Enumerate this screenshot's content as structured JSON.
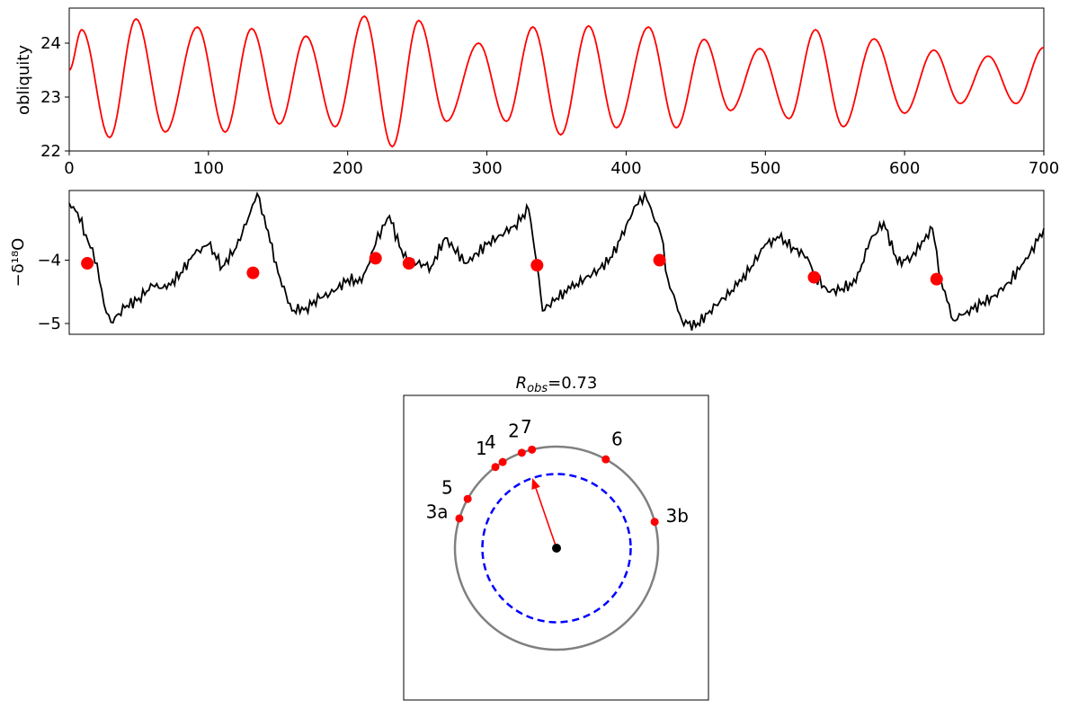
{
  "chart_data": [
    {
      "type": "line",
      "title": "",
      "xlabel": "",
      "ylabel": "obliquity",
      "xlim": [
        0,
        700
      ],
      "ylim": [
        22,
        24.65
      ],
      "xticks": [
        0,
        100,
        200,
        300,
        400,
        500,
        600,
        700
      ],
      "yticks": [
        22,
        23,
        24
      ],
      "grid": false,
      "series": [
        {
          "color": "#ff0000",
          "x": [
            0,
            9,
            29,
            48,
            69,
            92,
            112,
            131,
            151,
            170,
            191,
            212,
            232,
            251,
            271,
            294,
            314,
            333,
            353,
            373,
            393,
            416,
            436,
            456,
            475,
            496,
            517,
            536,
            556,
            578,
            600,
            621,
            640,
            660,
            680,
            700
          ],
          "y": [
            23.5,
            24.25,
            22.25,
            24.45,
            22.35,
            24.3,
            22.35,
            24.27,
            22.5,
            24.13,
            22.45,
            24.5,
            22.08,
            24.42,
            22.55,
            24.0,
            22.55,
            24.3,
            22.3,
            24.32,
            22.43,
            24.3,
            22.43,
            24.07,
            22.75,
            23.9,
            22.6,
            24.25,
            22.45,
            24.08,
            22.7,
            23.87,
            22.88,
            23.76,
            22.88,
            23.92
          ]
        }
      ]
    },
    {
      "type": "line",
      "title": "",
      "xlabel": "",
      "ylabel": "−δ¹⁸O",
      "xlim": [
        0,
        700
      ],
      "ylim": [
        -5.17,
        -2.9
      ],
      "yticks": [
        -4,
        -5
      ],
      "grid": false,
      "series": [
        {
          "color": "#000000",
          "x": [
            0,
            6,
            12,
            20,
            25,
            30,
            40,
            50,
            60,
            70,
            80,
            90,
            100,
            110,
            120,
            130,
            135,
            140,
            150,
            160,
            170,
            180,
            190,
            200,
            210,
            220,
            225,
            230,
            240,
            250,
            260,
            270,
            285,
            300,
            310,
            320,
            330,
            336,
            340,
            350,
            360,
            370,
            380,
            390,
            400,
            410,
            415,
            425,
            430,
            440,
            450,
            460,
            470,
            480,
            490,
            500,
            510,
            520,
            530,
            536,
            545,
            555,
            565,
            575,
            585,
            595,
            605,
            620,
            626,
            635,
            645,
            655,
            665,
            675,
            690,
            700
          ],
          "y": [
            -3.1,
            -3.25,
            -3.6,
            -4.05,
            -4.7,
            -4.98,
            -4.75,
            -4.6,
            -4.4,
            -4.45,
            -4.2,
            -3.9,
            -3.75,
            -4.1,
            -3.8,
            -3.25,
            -2.95,
            -3.3,
            -4.2,
            -4.8,
            -4.75,
            -4.6,
            -4.5,
            -4.3,
            -4.35,
            -3.75,
            -3.45,
            -3.3,
            -3.95,
            -4.05,
            -4.1,
            -3.65,
            -4.05,
            -3.75,
            -3.6,
            -3.45,
            -3.2,
            -4.08,
            -4.8,
            -4.6,
            -4.45,
            -4.3,
            -4.15,
            -3.95,
            -3.45,
            -3.0,
            -3.05,
            -3.6,
            -4.3,
            -4.95,
            -5.05,
            -4.8,
            -4.6,
            -4.4,
            -4.1,
            -3.75,
            -3.65,
            -3.8,
            -3.95,
            -4.25,
            -4.5,
            -4.45,
            -4.35,
            -3.7,
            -3.4,
            -4.05,
            -3.95,
            -3.5,
            -4.3,
            -4.95,
            -4.8,
            -4.7,
            -4.55,
            -4.35,
            -3.9,
            -3.5
          ]
        }
      ],
      "markers": {
        "color": "#ff0000",
        "x": [
          13,
          132,
          220,
          244,
          336,
          424,
          535,
          623
        ],
        "y": [
          -4.05,
          -4.2,
          -3.97,
          -4.05,
          -4.08,
          -4.0,
          -4.27,
          -4.3
        ]
      }
    },
    {
      "type": "scatter",
      "subtype": "polar",
      "title": "R_obs=0.73",
      "title_main": "R",
      "title_sub": "obs",
      "title_tail": "=0.73",
      "unit_circle_color": "#808080",
      "dashed_circle_color": "#0000ff",
      "dashed_circle_radius": 0.73,
      "resultant_color": "#ff0000",
      "resultant_angle_deg": 109,
      "resultant_length": 0.73,
      "center_color": "#000000",
      "points": [
        {
          "label": "1",
          "angle_deg": 127
        },
        {
          "label": "4",
          "angle_deg": 122
        },
        {
          "label": "2",
          "angle_deg": 110
        },
        {
          "label": "7",
          "angle_deg": 104
        },
        {
          "label": "6",
          "angle_deg": 61
        },
        {
          "label": "5",
          "angle_deg": 151
        },
        {
          "label": "3a",
          "angle_deg": 163
        },
        {
          "label": "3b",
          "angle_deg": 15
        }
      ],
      "point_color": "#ff0000"
    }
  ]
}
